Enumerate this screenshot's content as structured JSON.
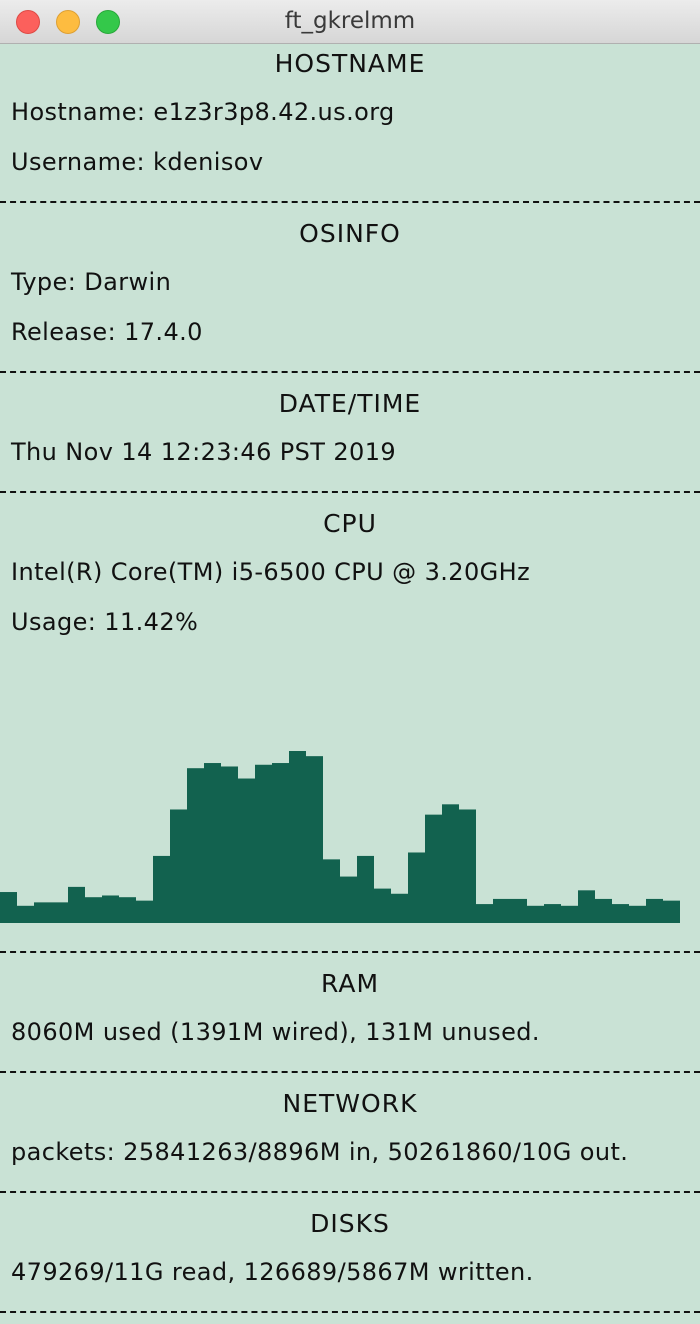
{
  "window": {
    "title": "ft_gkrelmm"
  },
  "hostname": {
    "heading": "HOSTNAME",
    "hostname": "Hostname: e1z3r3p8.42.us.org",
    "username": "Username: kdenisov"
  },
  "osinfo": {
    "heading": "OSINFO",
    "type": "Type: Darwin",
    "release": "Release: 17.4.0"
  },
  "datetime": {
    "heading": "DATE/TIME",
    "value": "Thu Nov 14 12:23:46 PST 2019"
  },
  "cpu": {
    "heading": "CPU",
    "model": "Intel(R) Core(TM) i5-6500 CPU @ 3.20GHz",
    "usage": "Usage: 11.42%",
    "graph_color": "#12624f",
    "history_percent": [
      18,
      10,
      12,
      12,
      21,
      15,
      16,
      15,
      13,
      39,
      66,
      90,
      93,
      91,
      84,
      92,
      93,
      100,
      97,
      37,
      27,
      39,
      20,
      17,
      41,
      63,
      69,
      66,
      11,
      14,
      14,
      10,
      11,
      10,
      19,
      14,
      11,
      10,
      14,
      13
    ]
  },
  "ram": {
    "heading": "RAM",
    "value": "8060M used (1391M wired), 131M unused."
  },
  "network": {
    "heading": "NETWORK",
    "value": "packets: 25841263/8896M in, 50261860/10G out."
  },
  "disks": {
    "heading": "DISKS",
    "value": "479269/11G read, 126689/5867M written."
  }
}
